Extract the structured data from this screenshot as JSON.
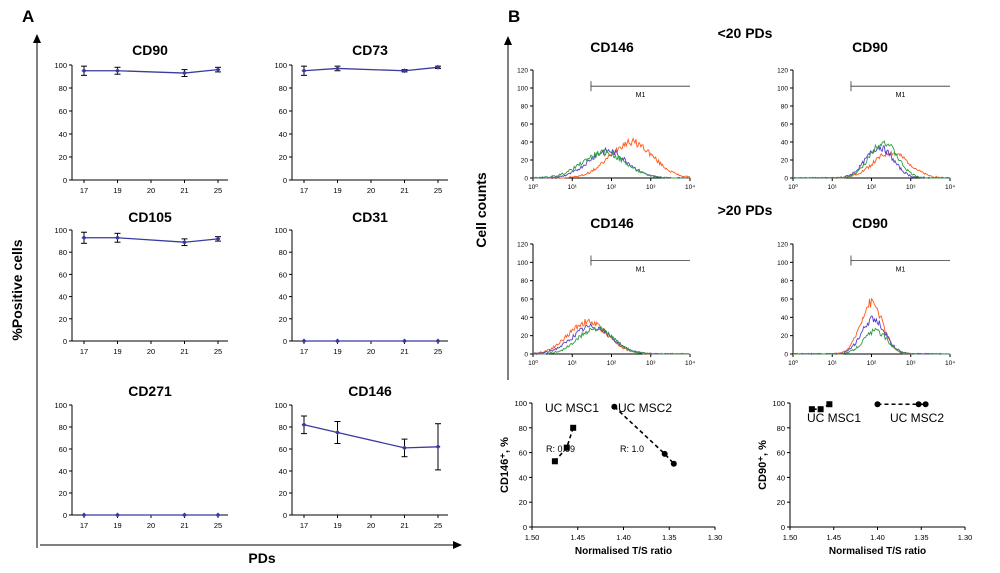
{
  "panels": {
    "a_label": "A",
    "b_label": "B"
  },
  "panel_a": {
    "ylabel": "%Positive cells",
    "xlabel": "PDs",
    "x_ticks": [
      "17",
      "19",
      "20",
      "21",
      "25"
    ],
    "y_ticks": [
      "0",
      "20",
      "40",
      "60",
      "80",
      "100"
    ]
  },
  "panel_b": {
    "ylabel": "Cell counts",
    "group_low": "<20 PDs",
    "group_high": ">20 PDs",
    "gate_label": "M1",
    "hist_y_ticks": [
      "0",
      "20",
      "40",
      "60",
      "80",
      "100",
      "120"
    ],
    "hist_x_ticks": [
      "10⁰",
      "10¹",
      "10²",
      "10³",
      "10⁴"
    ],
    "scatter_x_ticks": [
      "1.50",
      "1.45",
      "1.40",
      "1.35",
      "1.30"
    ],
    "scatter_y_ticks": [
      "0",
      "20",
      "40",
      "60",
      "80",
      "100"
    ]
  },
  "colors": {
    "line": "#3a3aa0",
    "orange": "#ff5a1e",
    "purple": "#5540c8",
    "green": "#2e9a3e"
  },
  "chart_data": [
    {
      "type": "line",
      "title": "CD90",
      "categories": [
        "17",
        "19",
        "20",
        "21",
        "25"
      ],
      "x": [
        17,
        19,
        21,
        25
      ],
      "values": [
        95,
        95,
        93,
        96
      ],
      "errors": [
        4,
        3,
        3,
        2
      ],
      "ylim": [
        0,
        100
      ]
    },
    {
      "type": "line",
      "title": "CD73",
      "categories": [
        "17",
        "19",
        "20",
        "21",
        "25"
      ],
      "x": [
        17,
        19,
        21,
        25
      ],
      "values": [
        95,
        97,
        95,
        98
      ],
      "errors": [
        4,
        2,
        1,
        1
      ],
      "ylim": [
        0,
        100
      ]
    },
    {
      "type": "line",
      "title": "CD105",
      "categories": [
        "17",
        "19",
        "20",
        "21",
        "25"
      ],
      "x": [
        17,
        19,
        21,
        25
      ],
      "values": [
        93,
        93,
        89,
        92
      ],
      "errors": [
        5,
        4,
        3,
        2
      ],
      "ylim": [
        0,
        100
      ]
    },
    {
      "type": "line",
      "title": "CD31",
      "categories": [
        "17",
        "19",
        "20",
        "21",
        "25"
      ],
      "x": [
        17,
        19,
        21,
        25
      ],
      "values": [
        0,
        0,
        0,
        0
      ],
      "errors": [
        0,
        0,
        0,
        0
      ],
      "ylim": [
        0,
        100
      ]
    },
    {
      "type": "line",
      "title": "CD271",
      "categories": [
        "17",
        "19",
        "20",
        "21",
        "25"
      ],
      "x": [
        17,
        19,
        21,
        25
      ],
      "values": [
        0,
        0,
        0,
        0
      ],
      "errors": [
        0,
        0,
        0,
        0
      ],
      "ylim": [
        0,
        100
      ]
    },
    {
      "type": "line",
      "title": "CD146",
      "categories": [
        "17",
        "19",
        "20",
        "21",
        "25"
      ],
      "x": [
        17,
        19,
        21,
        25
      ],
      "values": [
        82,
        75,
        61,
        62
      ],
      "errors": [
        8,
        10,
        8,
        21
      ],
      "ylim": [
        0,
        100
      ]
    },
    {
      "type": "histogram",
      "title": "CD146",
      "group": "<20 PDs",
      "xscale": "log",
      "xlim": [
        1,
        10000
      ],
      "ylim": [
        0,
        120
      ],
      "gate": [
        30,
        10000
      ],
      "series": [
        {
          "color": "orange",
          "peak_log": 2.5,
          "height": 40,
          "width": 0.55
        },
        {
          "color": "purple",
          "peak_log": 1.9,
          "height": 30,
          "width": 0.5
        },
        {
          "color": "green",
          "peak_log": 1.8,
          "height": 28,
          "width": 0.55
        }
      ]
    },
    {
      "type": "histogram",
      "title": "CD90",
      "group": "<20 PDs",
      "xscale": "log",
      "xlim": [
        1,
        10000
      ],
      "ylim": [
        0,
        120
      ],
      "gate": [
        30,
        10000
      ],
      "series": [
        {
          "color": "orange",
          "peak_log": 2.5,
          "height": 28,
          "width": 0.45
        },
        {
          "color": "purple",
          "peak_log": 2.2,
          "height": 34,
          "width": 0.35
        },
        {
          "color": "green",
          "peak_log": 2.3,
          "height": 40,
          "width": 0.35
        }
      ]
    },
    {
      "type": "histogram",
      "title": "CD146",
      "group": ">20 PDs",
      "xscale": "log",
      "xlim": [
        1,
        10000
      ],
      "ylim": [
        0,
        120
      ],
      "gate": [
        30,
        10000
      ],
      "series": [
        {
          "color": "orange",
          "peak_log": 1.4,
          "height": 35,
          "width": 0.5
        },
        {
          "color": "purple",
          "peak_log": 1.5,
          "height": 30,
          "width": 0.5
        },
        {
          "color": "green",
          "peak_log": 1.6,
          "height": 28,
          "width": 0.45
        }
      ]
    },
    {
      "type": "histogram",
      "title": "CD90",
      "group": ">20 PDs",
      "xscale": "log",
      "xlim": [
        1,
        10000
      ],
      "ylim": [
        0,
        120
      ],
      "gate": [
        30,
        10000
      ],
      "series": [
        {
          "color": "orange",
          "peak_log": 2.0,
          "height": 56,
          "width": 0.28
        },
        {
          "color": "purple",
          "peak_log": 2.05,
          "height": 38,
          "width": 0.3
        },
        {
          "color": "green",
          "peak_log": 2.1,
          "height": 25,
          "width": 0.3
        }
      ]
    },
    {
      "type": "scatter",
      "xlabel": "Normalised T/S ratio",
      "ylabel": "CD146⁺, %",
      "xlim": [
        1.5,
        1.3
      ],
      "ylim": [
        0,
        100
      ],
      "series": [
        {
          "name": "UC MSC1",
          "marker": "square",
          "x": [
            1.455,
            1.462,
            1.475
          ],
          "y": [
            80,
            64,
            53
          ],
          "r_label": "R: 0.99"
        },
        {
          "name": "UC MSC2",
          "marker": "circle",
          "x": [
            1.41,
            1.355,
            1.345
          ],
          "y": [
            97,
            59,
            51
          ],
          "r_label": "R: 1.0"
        }
      ]
    },
    {
      "type": "scatter",
      "xlabel": "Normalised T/S ratio",
      "ylabel": "CD90⁺, %",
      "xlim": [
        1.5,
        1.3
      ],
      "ylim": [
        0,
        100
      ],
      "series": [
        {
          "name": "UC MSC1",
          "marker": "square",
          "x": [
            1.455,
            1.465,
            1.475
          ],
          "y": [
            99,
            95,
            95
          ]
        },
        {
          "name": "UC MSC2",
          "marker": "circle",
          "x": [
            1.4,
            1.353,
            1.345
          ],
          "y": [
            99,
            99,
            99
          ]
        }
      ]
    }
  ]
}
